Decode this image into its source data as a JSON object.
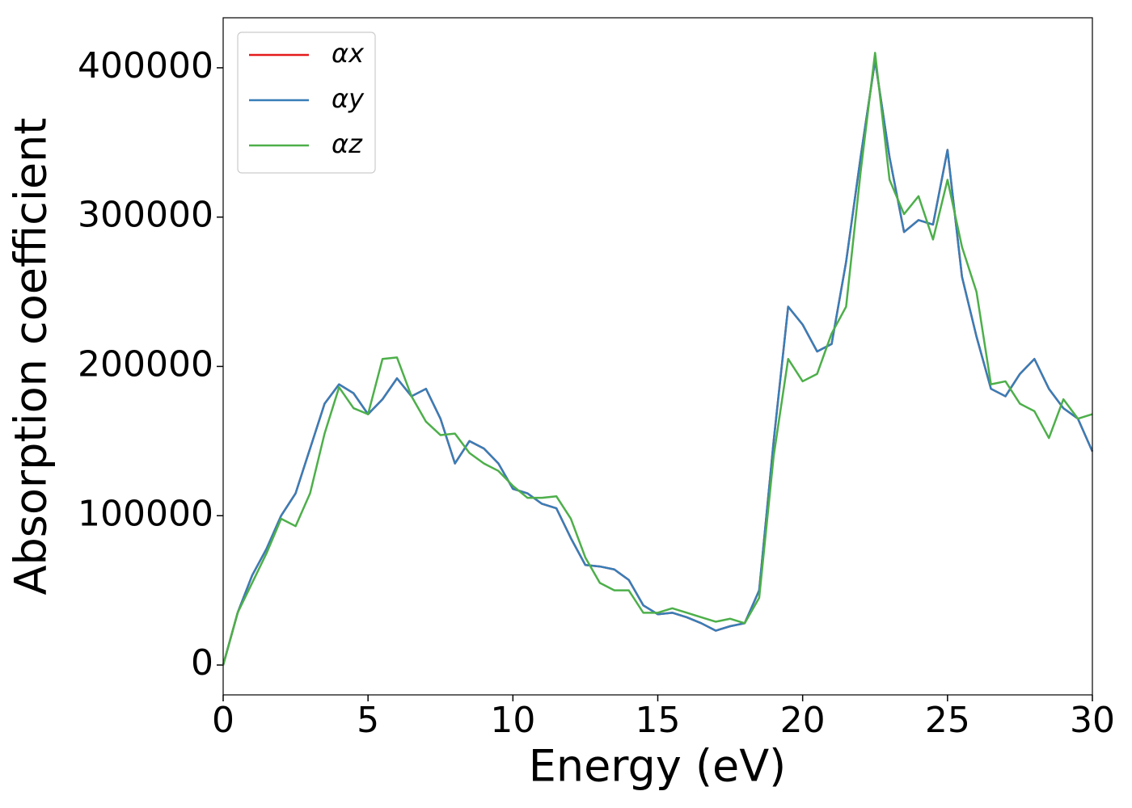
{
  "chart_data": {
    "type": "line",
    "x_label": "Energy (eV)",
    "y_label": "Absorption coefficient",
    "x": [
      0,
      0.5,
      1,
      1.5,
      2,
      2.5,
      3,
      3.5,
      4,
      4.5,
      5,
      5.5,
      6,
      6.5,
      7,
      7.5,
      8,
      8.5,
      9,
      9.5,
      10,
      10.5,
      11,
      11.5,
      12,
      12.5,
      13,
      13.5,
      14,
      14.5,
      15,
      15.5,
      16,
      16.5,
      17,
      17.5,
      18,
      18.5,
      19,
      19.5,
      20,
      20.5,
      21,
      21.5,
      22,
      22.5,
      23,
      23.5,
      24,
      24.5,
      25,
      25.5,
      26,
      26.5,
      27,
      27.5,
      28,
      28.5,
      29,
      29.5,
      30
    ],
    "series": [
      {
        "name": "αx",
        "color": "#e41a1c",
        "values": [
          0,
          35000,
          60000,
          78000,
          100000,
          115000,
          145000,
          175000,
          188000,
          182000,
          168000,
          178000,
          192000,
          180000,
          185000,
          165000,
          135000,
          150000,
          145000,
          135000,
          118000,
          115000,
          108000,
          105000,
          85000,
          67000,
          66000,
          64000,
          57000,
          40000,
          34000,
          35000,
          32000,
          28000,
          23000,
          26000,
          28000,
          50000,
          150000,
          240000,
          228000,
          210000,
          215000,
          270000,
          340000,
          405000,
          340000,
          290000,
          298000,
          295000,
          345000,
          260000,
          220000,
          185000,
          180000,
          195000,
          205000,
          185000,
          172000,
          165000,
          143000
        ]
      },
      {
        "name": "αy",
        "color": "#377eb8",
        "values": [
          0,
          35000,
          60000,
          78000,
          100000,
          115000,
          145000,
          175000,
          188000,
          182000,
          168000,
          178000,
          192000,
          180000,
          185000,
          165000,
          135000,
          150000,
          145000,
          135000,
          118000,
          115000,
          108000,
          105000,
          85000,
          67000,
          66000,
          64000,
          57000,
          40000,
          34000,
          35000,
          32000,
          28000,
          23000,
          26000,
          28000,
          50000,
          150000,
          240000,
          228000,
          210000,
          215000,
          270000,
          340000,
          405000,
          340000,
          290000,
          298000,
          295000,
          345000,
          260000,
          220000,
          185000,
          180000,
          195000,
          205000,
          185000,
          172000,
          165000,
          143000
        ]
      },
      {
        "name": "αz",
        "color": "#4daf4a",
        "values": [
          0,
          35000,
          55000,
          75000,
          98000,
          93000,
          115000,
          155000,
          186000,
          172000,
          168000,
          205000,
          206000,
          180000,
          163000,
          154000,
          155000,
          142000,
          135000,
          130000,
          120000,
          112000,
          112000,
          113000,
          98000,
          72000,
          55000,
          50000,
          50000,
          35000,
          35000,
          38000,
          35000,
          32000,
          29000,
          31000,
          28000,
          45000,
          140000,
          205000,
          190000,
          195000,
          222000,
          240000,
          330000,
          410000,
          325000,
          302000,
          314000,
          285000,
          325000,
          280000,
          250000,
          188000,
          190000,
          175000,
          170000,
          152000,
          178000,
          165000,
          168000
        ]
      }
    ],
    "xlim": [
      0,
      30
    ],
    "xticks": [
      0,
      5,
      10,
      15,
      20,
      25,
      30
    ],
    "ylim": [
      -20000,
      433500
    ],
    "yticks": [
      0,
      100000,
      200000,
      300000,
      400000
    ],
    "legend": "upper left"
  }
}
